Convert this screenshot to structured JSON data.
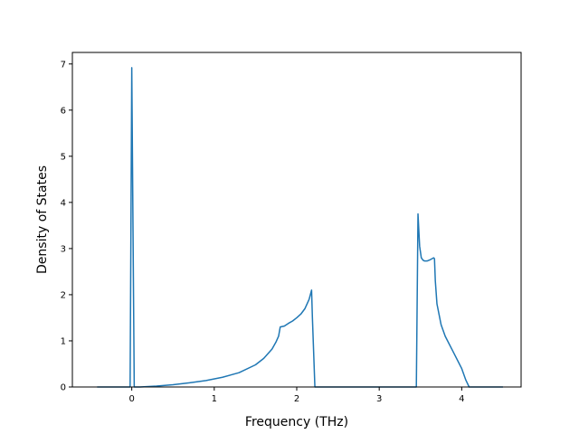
{
  "chart_data": {
    "type": "line",
    "xlabel": "Frequency (THz)",
    "ylabel": "Density of States",
    "xlim": [
      -0.72,
      4.72
    ],
    "ylim": [
      0,
      7.25
    ],
    "x_ticks": [
      0,
      1,
      2,
      3,
      4
    ],
    "y_ticks": [
      0,
      1,
      2,
      3,
      4,
      5,
      6,
      7
    ],
    "x_tick_labels": [
      "0",
      "1",
      "2",
      "3",
      "4"
    ],
    "y_tick_labels": [
      "0",
      "1",
      "2",
      "3",
      "4",
      "5",
      "6",
      "7"
    ],
    "grid": false,
    "legend": "none",
    "line_color": "#1f77b4",
    "series": [
      {
        "x": [
          -0.42,
          -0.02,
          0.0,
          0.03,
          0.06,
          0.1,
          0.3,
          0.5,
          0.7,
          0.9,
          1.1,
          1.3,
          1.5,
          1.6,
          1.7,
          1.75,
          1.78,
          1.8,
          1.85,
          1.9,
          1.95,
          2.0,
          2.05,
          2.1,
          2.15,
          2.18,
          2.19,
          2.22,
          2.5,
          3.0,
          3.45,
          3.47,
          3.49,
          3.51,
          3.53,
          3.55,
          3.58,
          3.62,
          3.66,
          3.67,
          3.68,
          3.7,
          3.75,
          3.8,
          3.9,
          4.0,
          4.05,
          4.09,
          4.2,
          4.5
        ],
        "y": [
          0,
          0,
          6.92,
          0,
          0,
          0,
          0.02,
          0.05,
          0.09,
          0.14,
          0.21,
          0.31,
          0.48,
          0.62,
          0.82,
          0.98,
          1.1,
          1.3,
          1.32,
          1.38,
          1.43,
          1.5,
          1.58,
          1.7,
          1.9,
          2.1,
          1.5,
          0,
          0,
          0,
          0,
          3.75,
          3.05,
          2.8,
          2.75,
          2.73,
          2.73,
          2.76,
          2.8,
          2.78,
          2.3,
          1.8,
          1.35,
          1.1,
          0.75,
          0.4,
          0.15,
          0,
          0,
          0
        ]
      }
    ]
  }
}
